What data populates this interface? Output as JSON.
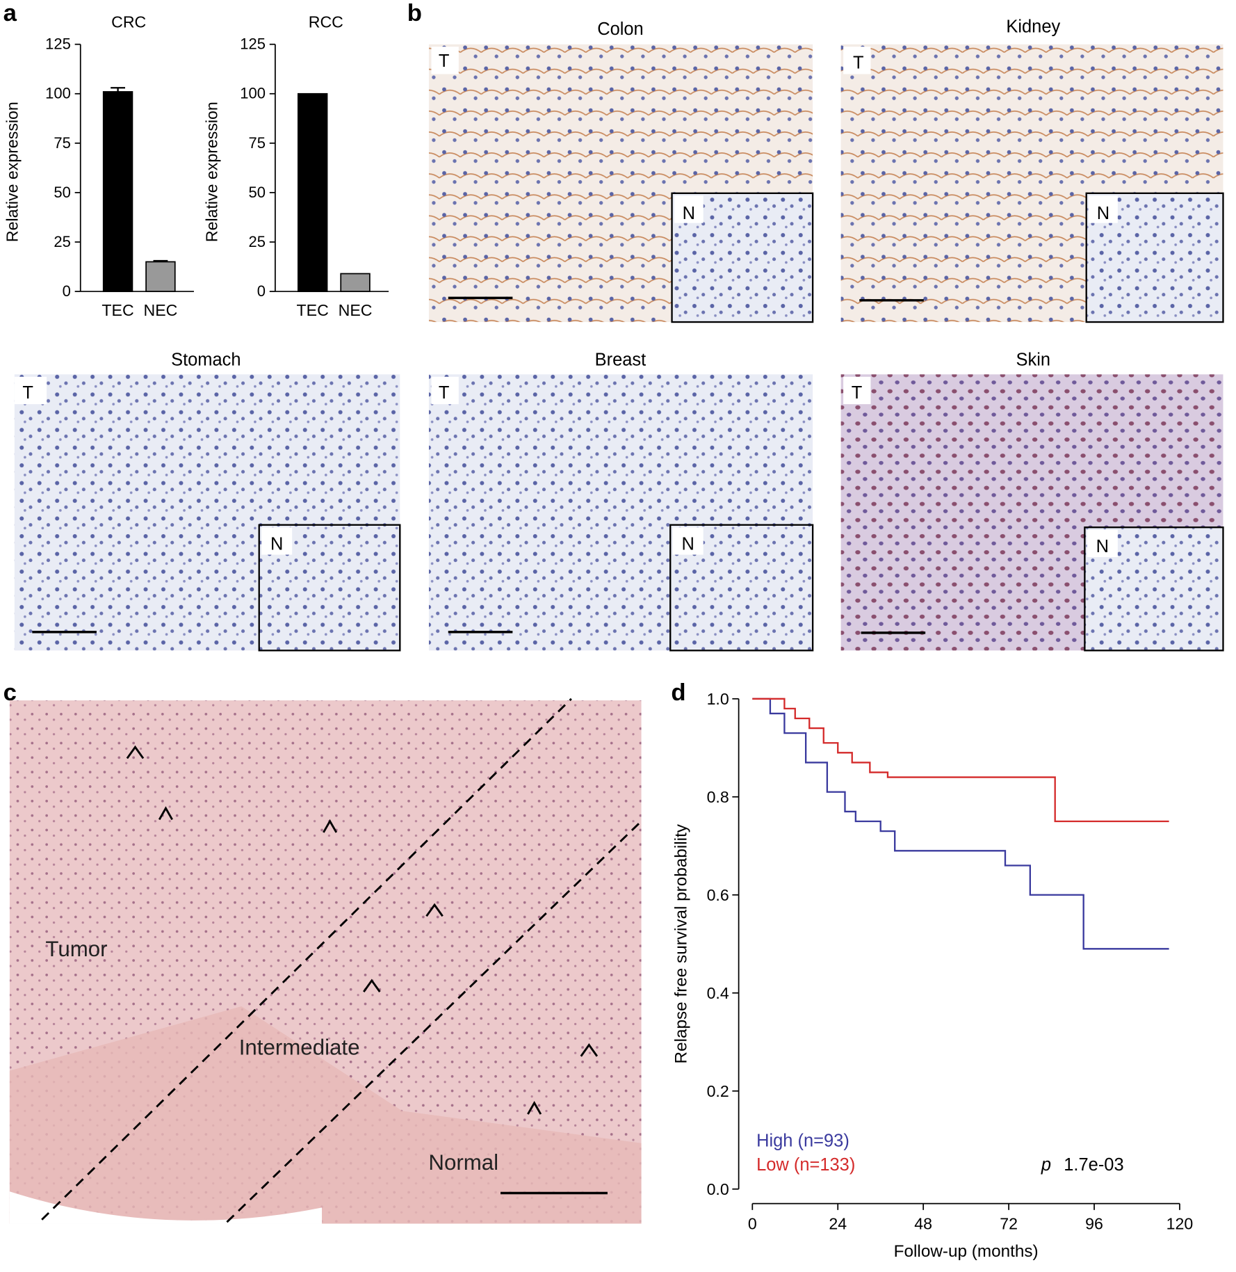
{
  "panel_labels": [
    "a",
    "b",
    "c",
    "d"
  ],
  "histology": {
    "tissues": [
      {
        "title": "Colon",
        "tumor_label": "T",
        "normal_label": "N"
      },
      {
        "title": "Kidney",
        "tumor_label": "T",
        "normal_label": "N"
      },
      {
        "title": "Stomach",
        "tumor_label": "T",
        "normal_label": "N"
      },
      {
        "title": "Breast",
        "tumor_label": "T",
        "normal_label": "N"
      },
      {
        "title": "Skin",
        "tumor_label": "T",
        "normal_label": "N"
      }
    ]
  },
  "panel_c": {
    "regions": [
      "Tumor",
      "Intermediate",
      "Normal"
    ]
  },
  "chart_data": [
    {
      "type": "bar",
      "title": "CRC",
      "y_label": "Relative expression",
      "categories": [
        "TEC",
        "NEC"
      ],
      "values": [
        101,
        15
      ],
      "errors": [
        2,
        0.5
      ],
      "colors": [
        "#000000",
        "#999999"
      ],
      "ylim": [
        0,
        125
      ],
      "yticks": [
        0,
        25,
        50,
        75,
        100,
        125
      ]
    },
    {
      "type": "bar",
      "title": "RCC",
      "y_label": "Relative expression",
      "categories": [
        "TEC",
        "NEC"
      ],
      "values": [
        100,
        9
      ],
      "colors": [
        "#000000",
        "#999999"
      ],
      "ylim": [
        0,
        125
      ],
      "yticks": [
        0,
        25,
        50,
        75,
        100,
        125
      ]
    },
    {
      "type": "line",
      "x_label": "Follow-up (months)",
      "y_label": "Relapse free survival probability",
      "xlim": [
        0,
        120
      ],
      "xticks": [
        0,
        24,
        48,
        72,
        96,
        120
      ],
      "ylim": [
        0,
        1
      ],
      "yticks": [
        {
          "value": 0,
          "label": "0.0"
        },
        0.2,
        0.4,
        0.6,
        0.8,
        {
          "value": 1,
          "label": "1.0"
        }
      ],
      "p_label": "p",
      "p_value": "1.7e-03",
      "series": [
        {
          "name": "High (n=93)",
          "color": "#3a3a9e",
          "x": [
            0,
            5,
            5,
            9,
            9,
            15,
            15,
            21,
            21,
            26,
            26,
            29,
            29,
            36,
            36,
            40,
            40,
            71,
            71,
            78,
            78,
            93,
            93,
            117
          ],
          "values": [
            1,
            1,
            0.97,
            0.97,
            0.93,
            0.93,
            0.87,
            0.87,
            0.81,
            0.81,
            0.77,
            0.77,
            0.75,
            0.75,
            0.73,
            0.73,
            0.69,
            0.69,
            0.66,
            0.66,
            0.6,
            0.6,
            0.49,
            0.49
          ]
        },
        {
          "name": "Low (n=133)",
          "color": "#d42a2a",
          "x": [
            0,
            9,
            9,
            12,
            12,
            16,
            16,
            20,
            20,
            24,
            24,
            28,
            28,
            33,
            33,
            38,
            38,
            85,
            85,
            117
          ],
          "values": [
            1,
            1,
            0.98,
            0.98,
            0.96,
            0.96,
            0.94,
            0.94,
            0.91,
            0.91,
            0.89,
            0.89,
            0.87,
            0.87,
            0.85,
            0.85,
            0.84,
            0.84,
            0.75,
            0.75
          ]
        }
      ]
    }
  ]
}
